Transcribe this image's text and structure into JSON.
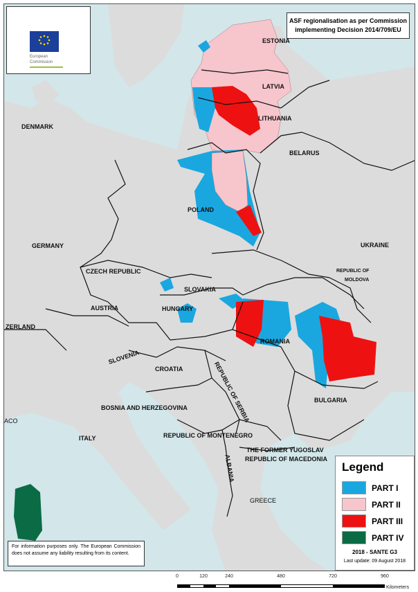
{
  "logo": {
    "org_line1": "European",
    "org_line2": "Commission"
  },
  "title": {
    "line1": "ASF regionalisation as per Commission",
    "line2": "implementing Decision 2014/709/EU"
  },
  "countries": [
    "ESTONIA",
    "LATVIA",
    "LITHUANIA",
    "DENMARK",
    "BELARUS",
    "POLAND",
    "GERMANY",
    "UKRAINE",
    "CZECH REPUBLIC",
    "SLOVAKIA",
    "REPUBLIC OF",
    "MOLDOVA",
    "AUSTRIA",
    "HUNGARY",
    "ZERLAND",
    "SLOVENIA",
    "CROATIA",
    "ROMANIA",
    "REPUBLIC OF SERBIA",
    "BULGARIA",
    "BOSNIA AND HERZEGOVINA",
    "ITALY",
    "REPUBLIC OF MONTENEGRO",
    "ACO",
    "THE FORMER YUGOSLAV",
    "REPUBLIC OF MACEDONIA",
    "ALBANIA",
    "GREECE"
  ],
  "legend": {
    "title": "Legend",
    "items": [
      {
        "label": "PART I",
        "color": "#1aa7e0"
      },
      {
        "label": "PART II",
        "color": "#f7c5cc"
      },
      {
        "label": "PART III",
        "color": "#ee1111"
      },
      {
        "label": "PART IV",
        "color": "#0a6b45"
      }
    ],
    "credit": "2018 - SANTE G3",
    "last_update": "Last update: 09 August 2018"
  },
  "disclaimer": "For information purposes only. The European Commission does not assume any liability resulting from its content.",
  "scale_bar": {
    "ticks": [
      "0",
      "120",
      "240",
      "480",
      "720",
      "960"
    ],
    "unit": "Kilometers"
  },
  "colors": {
    "sea": "#d3e6ea",
    "land": "#dcdcdc",
    "border": "#111111"
  }
}
